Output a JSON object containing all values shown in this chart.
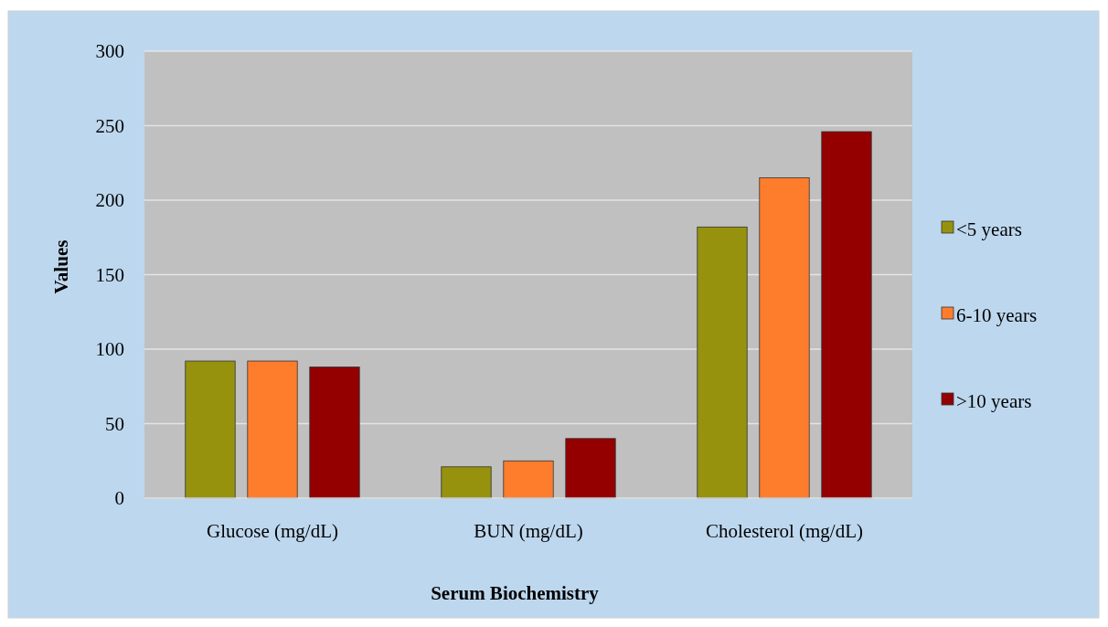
{
  "chart_data": {
    "type": "bar",
    "xlabel": "Serum Biochemistry",
    "ylabel": "Values",
    "categories": [
      "Glucose (mg/dL)",
      "BUN (mg/dL)",
      "Cholesterol (mg/dL)"
    ],
    "series": [
      {
        "name": "<5 years",
        "color": "#97920e",
        "values": [
          92,
          21,
          182
        ]
      },
      {
        "name": "6-10 years",
        "color": "#fd7d2d",
        "values": [
          92,
          25,
          215
        ]
      },
      {
        "name": ">10 years",
        "color": "#940000",
        "values": [
          88,
          40,
          246
        ]
      }
    ],
    "ylim": [
      0,
      300
    ],
    "yticks": [
      0,
      50,
      100,
      150,
      200,
      250,
      300
    ],
    "grid": "y",
    "legend": "right"
  }
}
